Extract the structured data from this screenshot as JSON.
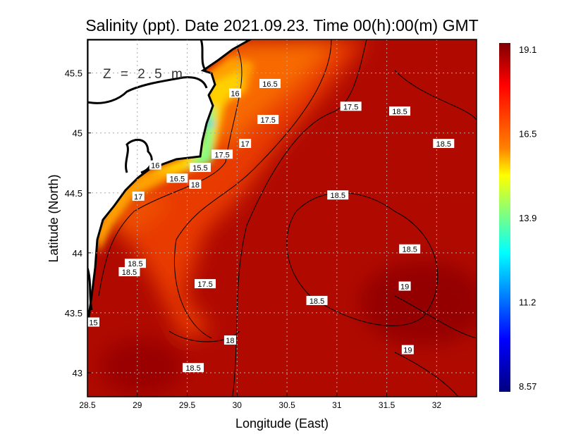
{
  "chart_data": {
    "type": "heatmap",
    "title": "Salinity (ppt). Date 2021.09.23. Time 00(h):00(m) GMT",
    "annotation": "Z = 2.5 m",
    "xlabel": "Longitude (East)",
    "ylabel": "Latitude (North)",
    "xlim": [
      28.5,
      32.4
    ],
    "ylim": [
      42.8,
      45.78
    ],
    "xticks": [
      "28.5",
      "29",
      "29.5",
      "30",
      "30.5",
      "31",
      "31.5",
      "32"
    ],
    "yticks": [
      "43",
      "43.5",
      "44",
      "44.5",
      "45",
      "45.5"
    ],
    "grid": true,
    "colorbar": {
      "min": 8.57,
      "max": 19.1,
      "ticks": [
        "19.1",
        "16.5",
        "13.9",
        "11.2",
        "8.57"
      ],
      "colormap": "jet"
    },
    "contour_labels": [
      {
        "text": "16.5",
        "lon": 30.33,
        "lat": 45.41
      },
      {
        "text": "16",
        "lon": 29.98,
        "lat": 45.33
      },
      {
        "text": "17.5",
        "lon": 31.14,
        "lat": 45.22
      },
      {
        "text": "18.5",
        "lon": 31.63,
        "lat": 45.18
      },
      {
        "text": "17.5",
        "lon": 30.31,
        "lat": 45.11
      },
      {
        "text": "17",
        "lon": 30.08,
        "lat": 44.91
      },
      {
        "text": "18.5",
        "lon": 32.07,
        "lat": 44.91
      },
      {
        "text": "17.5",
        "lon": 29.85,
        "lat": 44.82
      },
      {
        "text": "16",
        "lon": 29.18,
        "lat": 44.73
      },
      {
        "text": "15.5",
        "lon": 29.63,
        "lat": 44.71
      },
      {
        "text": "16.5",
        "lon": 29.4,
        "lat": 44.62
      },
      {
        "text": "18",
        "lon": 29.58,
        "lat": 44.57
      },
      {
        "text": "17",
        "lon": 29.01,
        "lat": 44.47
      },
      {
        "text": "18.5",
        "lon": 31.01,
        "lat": 44.48
      },
      {
        "text": "18.5",
        "lon": 31.73,
        "lat": 44.03
      },
      {
        "text": "18.5",
        "lon": 28.98,
        "lat": 43.91
      },
      {
        "text": "18.5",
        "lon": 28.92,
        "lat": 43.84
      },
      {
        "text": "17.5",
        "lon": 29.68,
        "lat": 43.74
      },
      {
        "text": "19",
        "lon": 31.68,
        "lat": 43.72
      },
      {
        "text": "18.5",
        "lon": 30.8,
        "lat": 43.6
      },
      {
        "text": "15",
        "lon": 28.56,
        "lat": 43.42
      },
      {
        "text": "18",
        "lon": 29.93,
        "lat": 43.27
      },
      {
        "text": "19",
        "lon": 31.71,
        "lat": 43.19
      },
      {
        "text": "18.5",
        "lon": 29.56,
        "lat": 43.04
      }
    ]
  }
}
